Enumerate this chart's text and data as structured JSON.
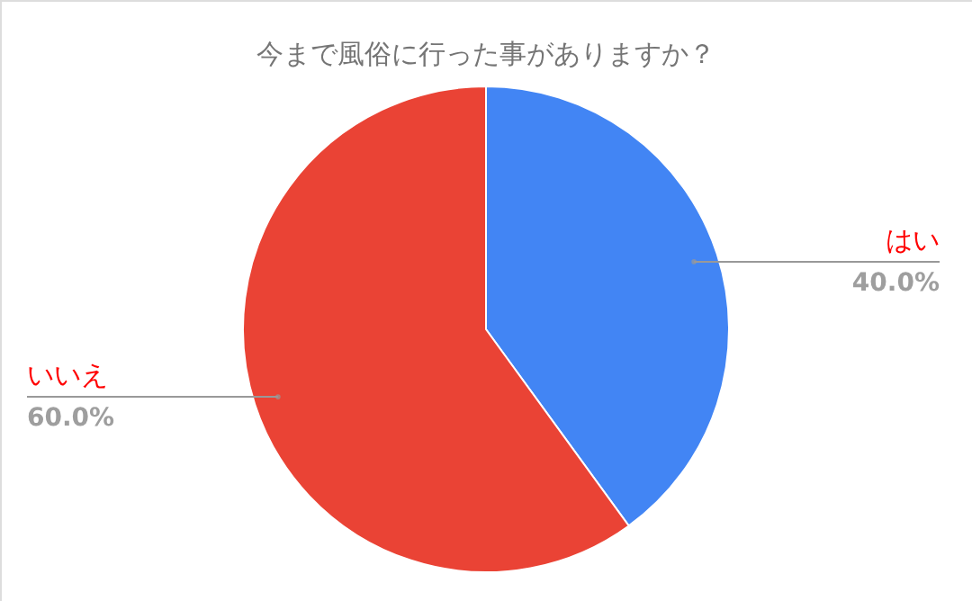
{
  "chart_data": {
    "type": "pie",
    "title": "今まで風俗に行った事がありますか？",
    "categories": [
      "はい",
      "いいえ"
    ],
    "values": [
      40,
      60
    ],
    "colors": [
      "#4285f4",
      "#ea4335"
    ],
    "value_labels": [
      "40.0%",
      "60.0%"
    ]
  }
}
